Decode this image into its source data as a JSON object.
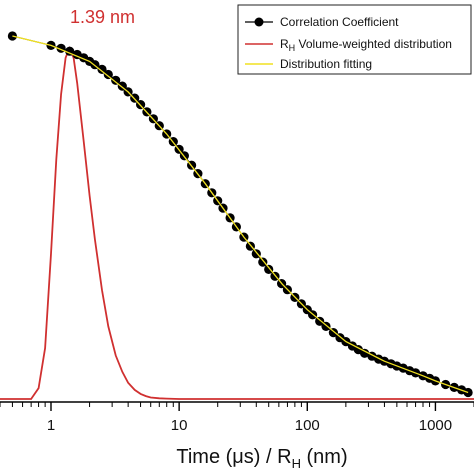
{
  "chart_data": {
    "type": "line",
    "title": "",
    "xlabel": {
      "main": "Time (μs) / R",
      "sub": "H",
      "tail": " (nm)"
    },
    "ylabel": "",
    "xscale": "log",
    "xlim": [
      0.4,
      2000
    ],
    "ylim": [
      0,
      1.1
    ],
    "xticks": [
      {
        "value": 1,
        "label": "1"
      },
      {
        "value": 10,
        "label": "10"
      },
      {
        "value": 100,
        "label": "100"
      },
      {
        "value": 1000,
        "label": "1000"
      }
    ],
    "legend_position": "top-right",
    "annotation": {
      "text": "1.39 nm",
      "x": 1.39,
      "color": "#d03030"
    },
    "series": [
      {
        "name": "Correlation Coefficient",
        "marker": "circle",
        "color": "#000000",
        "x": [
          0.5,
          1.0,
          1.2,
          1.4,
          1.6,
          1.8,
          2.0,
          2.2,
          2.5,
          2.8,
          3.2,
          3.6,
          4.0,
          4.5,
          5,
          5.6,
          6.3,
          7,
          8,
          9,
          10,
          11,
          12.5,
          14,
          16,
          18,
          20,
          22,
          25,
          28,
          32,
          36,
          40,
          45,
          50,
          56,
          63,
          70,
          80,
          90,
          100,
          110,
          125,
          140,
          160,
          180,
          200,
          225,
          250,
          280,
          320,
          360,
          400,
          450,
          500,
          560,
          630,
          700,
          800,
          900,
          1000,
          1200,
          1400,
          1600,
          1800
        ],
        "y": [
          1.0,
          0.974,
          0.966,
          0.958,
          0.949,
          0.94,
          0.93,
          0.921,
          0.908,
          0.894,
          0.878,
          0.862,
          0.846,
          0.829,
          0.811,
          0.791,
          0.772,
          0.753,
          0.73,
          0.709,
          0.688,
          0.67,
          0.644,
          0.621,
          0.593,
          0.568,
          0.546,
          0.526,
          0.499,
          0.474,
          0.446,
          0.421,
          0.4,
          0.377,
          0.357,
          0.338,
          0.318,
          0.301,
          0.28,
          0.262,
          0.246,
          0.232,
          0.214,
          0.2,
          0.183,
          0.169,
          0.158,
          0.146,
          0.136,
          0.126,
          0.118,
          0.11,
          0.104,
          0.097,
          0.091,
          0.085,
          0.078,
          0.072,
          0.064,
          0.057,
          0.05,
          0.04,
          0.032,
          0.025,
          0.018
        ]
      },
      {
        "name": "R",
        "name_sub": "H",
        "name_tail": " Volume-weighted distribution",
        "marker": "none",
        "color": "#d03030",
        "x": [
          0.4,
          0.7,
          0.8,
          0.9,
          1.0,
          1.1,
          1.2,
          1.3,
          1.39,
          1.5,
          1.6,
          1.8,
          2.0,
          2.2,
          2.5,
          2.8,
          3.2,
          3.6,
          4.0,
          4.5,
          5.0,
          5.5,
          6.0,
          7.0,
          8.0,
          10,
          100,
          2000
        ],
        "y": [
          0.0,
          0.0,
          0.03,
          0.14,
          0.4,
          0.66,
          0.84,
          0.94,
          0.966,
          0.94,
          0.87,
          0.71,
          0.56,
          0.44,
          0.3,
          0.2,
          0.12,
          0.075,
          0.045,
          0.025,
          0.014,
          0.008,
          0.004,
          0.002,
          0.001,
          0.0,
          0.0,
          0.0
        ]
      },
      {
        "name": "Distribution fitting",
        "marker": "none",
        "color": "#f0e020",
        "x": [
          0.5,
          1.0,
          2.0,
          4.0,
          8,
          16,
          32,
          64,
          100,
          200,
          400,
          800,
          1000,
          1800
        ],
        "y": [
          1.0,
          0.974,
          0.93,
          0.846,
          0.73,
          0.593,
          0.446,
          0.316,
          0.246,
          0.158,
          0.104,
          0.064,
          0.05,
          0.018
        ]
      }
    ]
  }
}
